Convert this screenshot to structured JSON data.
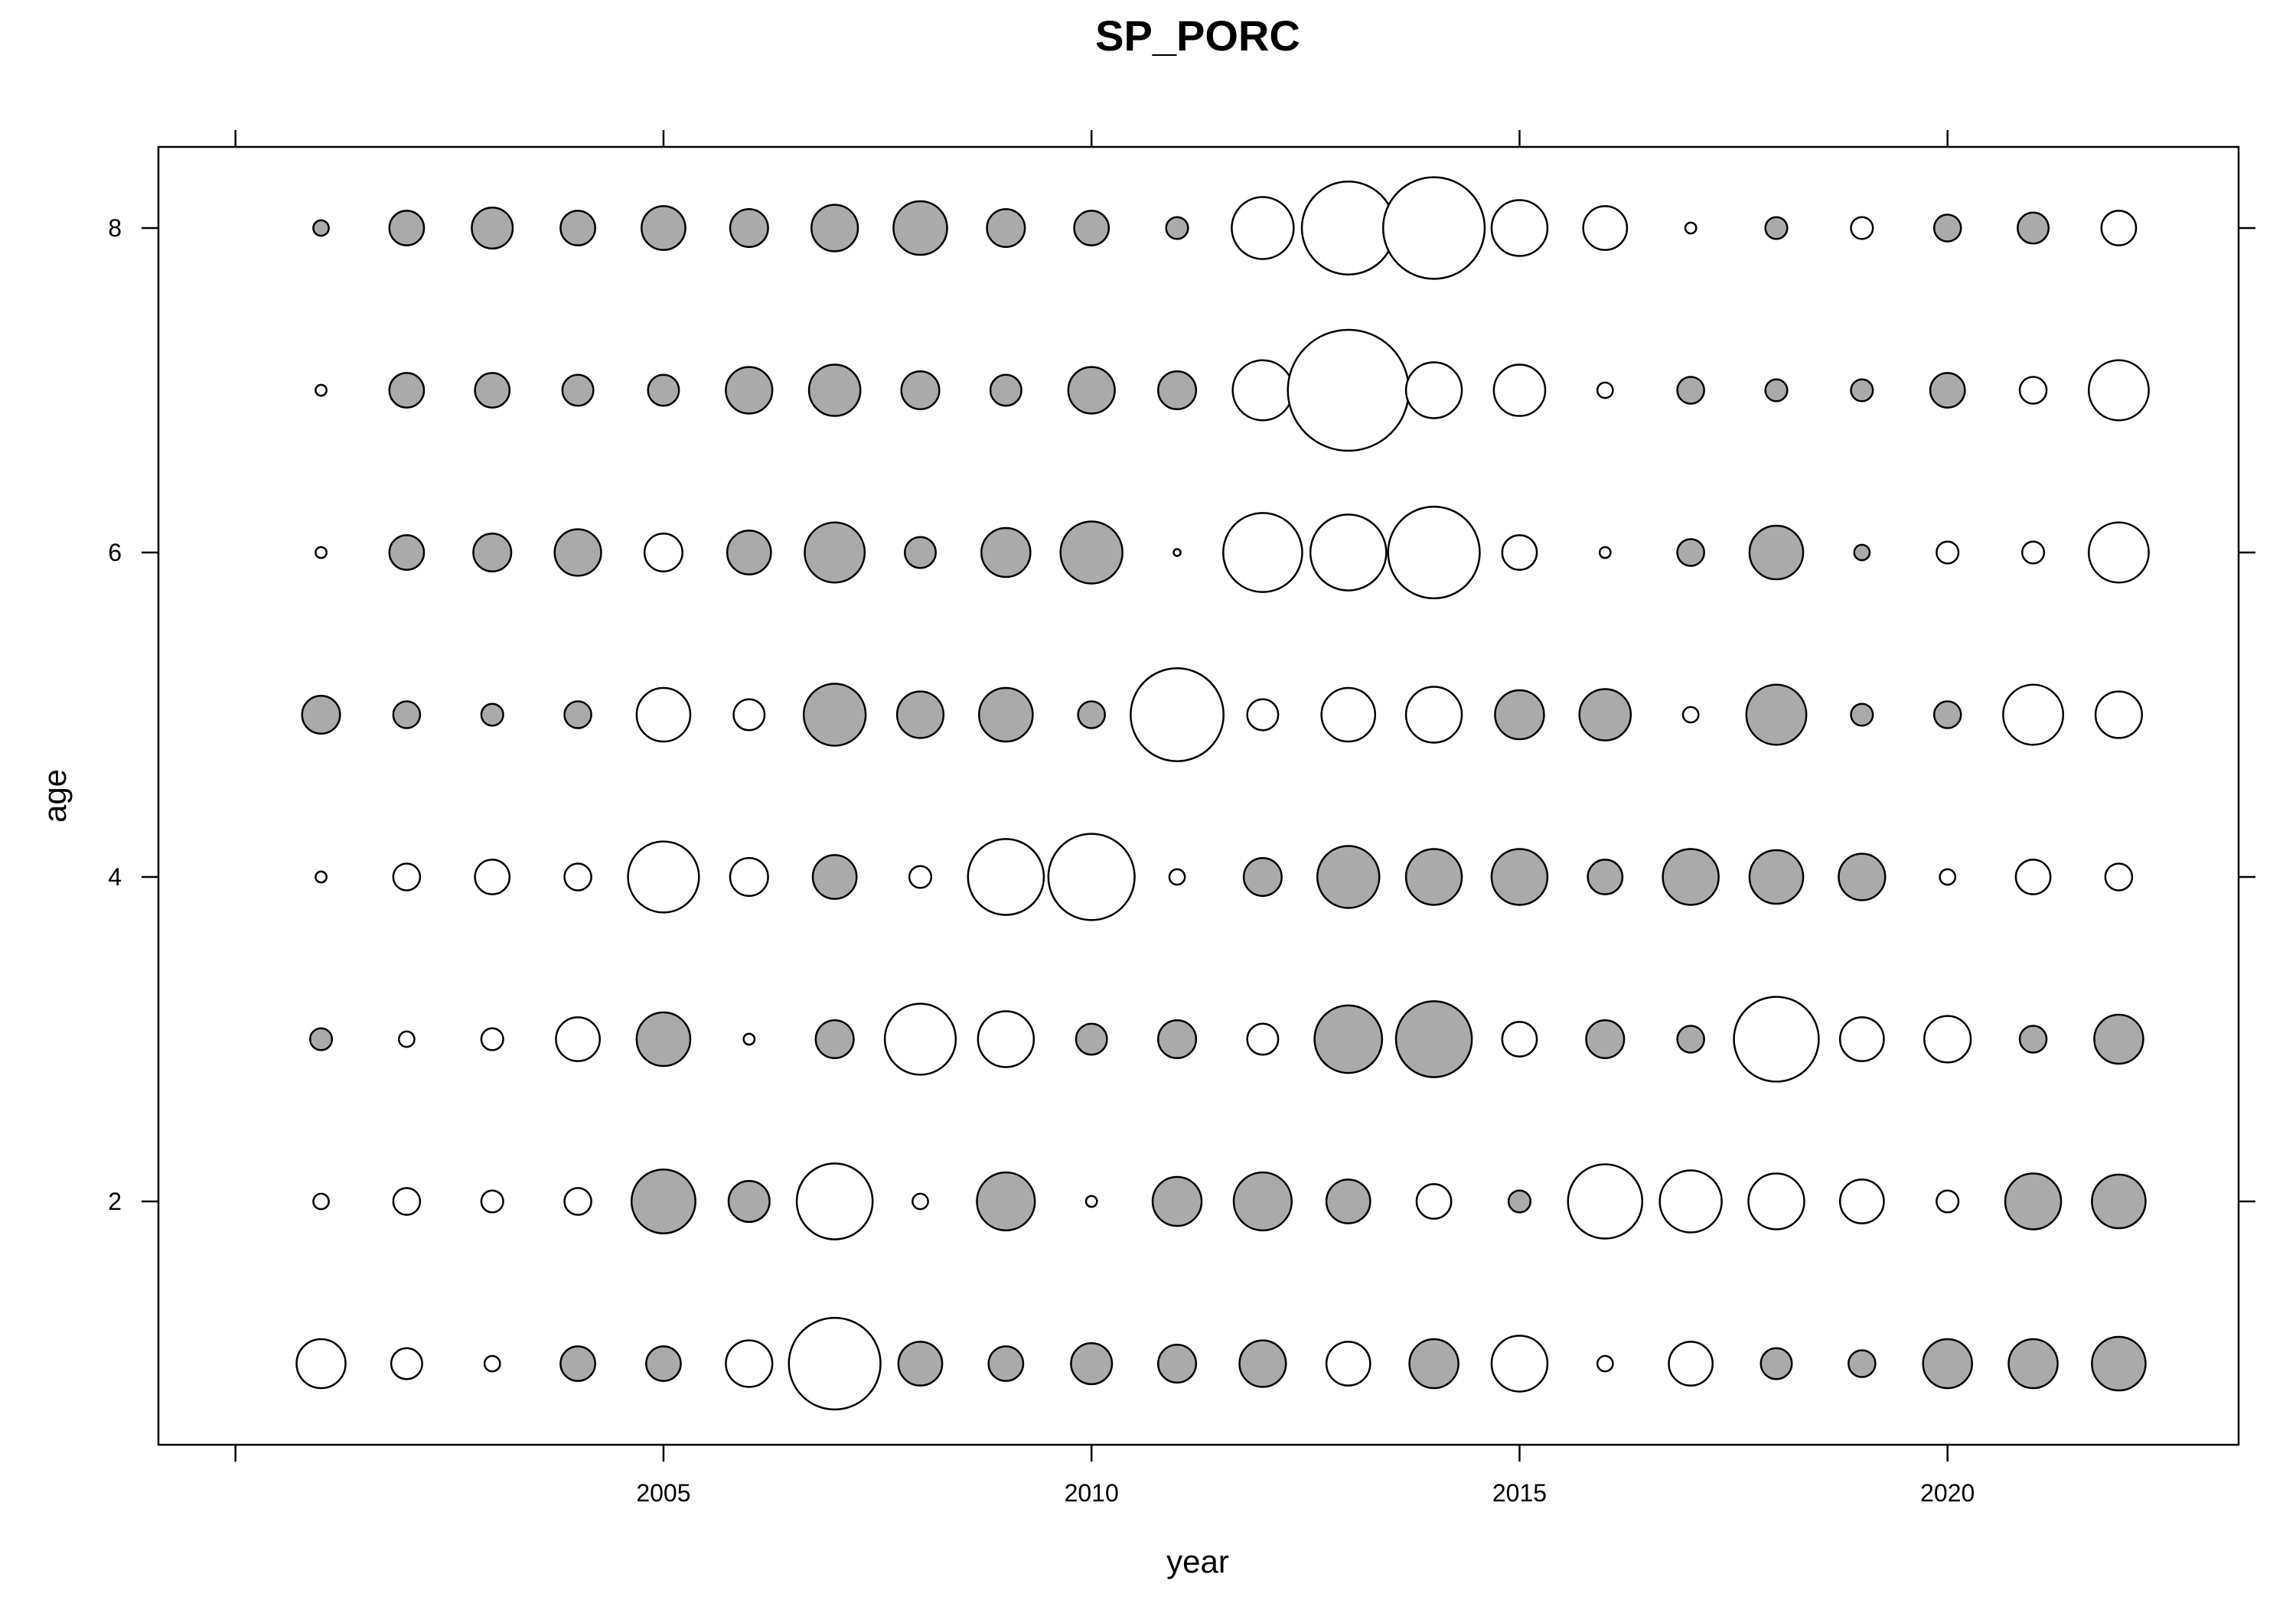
{
  "chart_data": {
    "type": "bubble",
    "title": "SP_PORC",
    "xlabel": "year",
    "ylabel": "age",
    "xlim": [
      1999.1,
      2023.4
    ],
    "ylim": [
      0.5,
      8.5
    ],
    "x_ticks": [
      2005,
      2010,
      2015,
      2020
    ],
    "y_ticks": [
      2,
      4,
      6,
      8
    ],
    "top_ticks": [
      2000,
      2005,
      2010,
      2015,
      2020
    ],
    "legend": "none",
    "grid": false,
    "colors": {
      "positive": "#ffffff",
      "negative": "#aaaaaa",
      "stroke": "#000000"
    },
    "note_sign": "filled grey circles = negative residuals, open circles = positive residuals; values are residual magnitude read from circle area",
    "years": [
      2001,
      2002,
      2003,
      2004,
      2005,
      2006,
      2007,
      2008,
      2009,
      2010,
      2011,
      2012,
      2013,
      2014,
      2015,
      2016,
      2017,
      2018,
      2019,
      2020,
      2021,
      2022
    ],
    "ages": [
      1,
      2,
      3,
      4,
      5,
      6,
      7,
      8
    ],
    "residuals": [
      [
        1.0,
        0.4,
        0.1,
        -0.5,
        -0.5,
        0.9,
        3.5,
        -0.8,
        -0.5,
        -0.7,
        -0.6,
        -0.9,
        0.8,
        -1.0,
        1.3,
        0.1,
        0.8,
        -0.4,
        -0.3,
        -1.0,
        -1.0,
        -1.2
      ],
      [
        0.1,
        0.3,
        0.2,
        0.3,
        -1.7,
        -0.7,
        2.4,
        0.1,
        -1.4,
        0.05,
        -1.0,
        -1.4,
        -0.8,
        0.5,
        -0.2,
        2.3,
        1.6,
        1.3,
        0.8,
        0.2,
        -1.3,
        -1.2
      ],
      [
        -0.2,
        0.1,
        0.2,
        0.8,
        -1.2,
        0.05,
        -0.6,
        2.1,
        1.3,
        -0.4,
        -0.6,
        0.4,
        -1.9,
        -2.4,
        0.5,
        -0.6,
        -0.3,
        3.0,
        0.8,
        0.9,
        -0.3,
        -1.0
      ],
      [
        0.05,
        0.3,
        0.5,
        0.3,
        2.1,
        0.6,
        -0.8,
        0.2,
        2.4,
        3.1,
        0.1,
        -0.6,
        -1.6,
        -1.3,
        -1.3,
        -0.5,
        -1.3,
        -1.2,
        -0.9,
        0.1,
        0.5,
        0.3
      ],
      [
        -0.6,
        -0.3,
        -0.2,
        -0.3,
        1.2,
        0.4,
        -1.6,
        -0.9,
        -1.2,
        -0.3,
        3.6,
        0.4,
        1.2,
        1.3,
        -1.0,
        -1.1,
        0.1,
        -1.5,
        -0.2,
        -0.3,
        1.5,
        0.9
      ],
      [
        0.05,
        -0.5,
        -0.6,
        -0.9,
        0.6,
        -0.8,
        -1.5,
        -0.4,
        -1.0,
        -1.6,
        0.02,
        2.6,
        2.4,
        3.5,
        0.5,
        0.05,
        -0.3,
        -1.2,
        -0.1,
        0.2,
        0.2,
        1.5
      ],
      [
        0.05,
        -0.5,
        -0.5,
        -0.4,
        -0.4,
        -0.9,
        -1.1,
        -0.6,
        -0.4,
        -0.9,
        -0.6,
        1.5,
        6.1,
        1.3,
        1.1,
        0.1,
        -0.3,
        -0.2,
        -0.2,
        -0.5,
        0.3,
        1.5
      ],
      [
        -0.1,
        -0.5,
        -0.7,
        -0.5,
        -0.8,
        -0.6,
        -0.9,
        -1.2,
        -0.6,
        -0.5,
        -0.2,
        1.6,
        3.6,
        4.3,
        1.3,
        0.8,
        0.05,
        -0.2,
        0.2,
        -0.3,
        -0.4,
        0.5
      ]
    ]
  }
}
